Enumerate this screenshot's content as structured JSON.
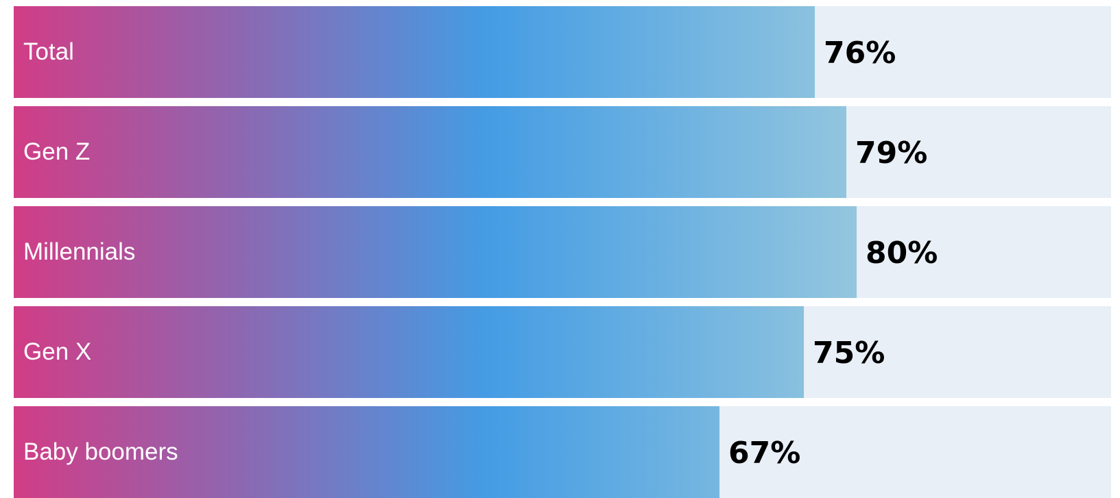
{
  "chart_data": {
    "type": "bar",
    "orientation": "horizontal",
    "categories": [
      "Total",
      "Gen Z",
      "Millennials",
      "Gen X",
      "Baby boomers"
    ],
    "values": [
      76,
      79,
      80,
      75,
      67
    ],
    "value_labels": [
      "76%",
      "79%",
      "80%",
      "75%",
      "67%"
    ],
    "unit": "%",
    "xlim": [
      0,
      100
    ],
    "title": "",
    "xlabel": "",
    "ylabel": "",
    "grid": false,
    "legend": "none",
    "colors": {
      "gradient_start": "#d13d86",
      "gradient_mid_1": "#8f66b0",
      "gradient_mid_2": "#449ce4",
      "gradient_end": "#97c8de",
      "track": "#e8eff6",
      "category_text": "#ffffff",
      "value_text": "#000000"
    }
  }
}
